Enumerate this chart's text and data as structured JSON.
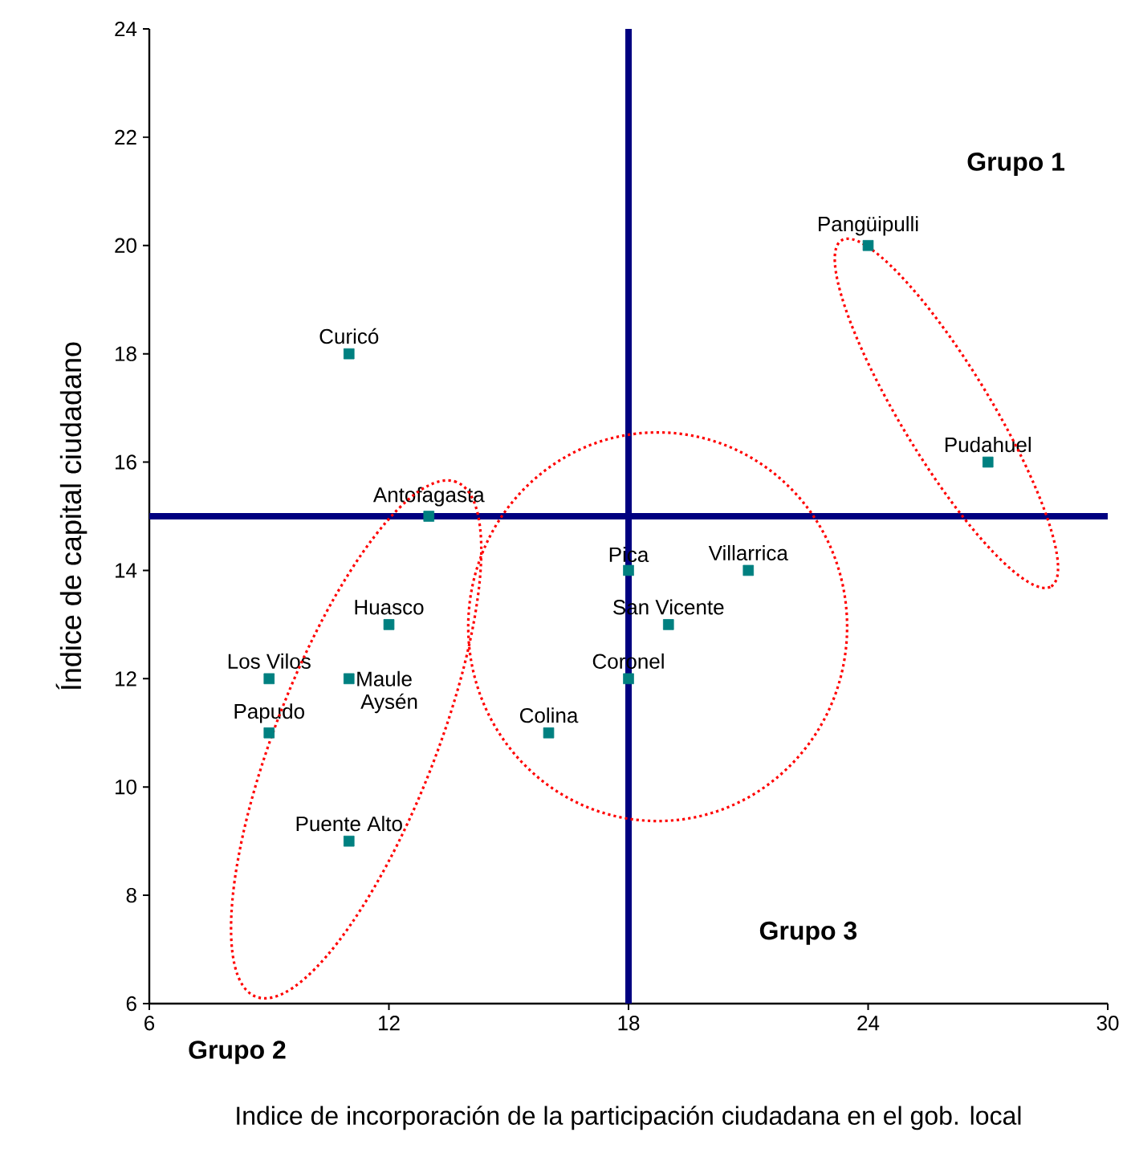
{
  "chart_data": {
    "type": "scatter",
    "xlabel": "Indice de incorporación de la participación ciudadana en el gob. local",
    "ylabel": "Índice de capital ciudadano",
    "xlim": [
      6,
      30
    ],
    "xticks": [
      6,
      12,
      18,
      24,
      30
    ],
    "ylim": [
      6,
      24
    ],
    "yticks": [
      6,
      8,
      10,
      12,
      14,
      16,
      18,
      20,
      22,
      24
    ],
    "marker": "square",
    "grid": false,
    "series": [
      {
        "color": "#008080",
        "x": [
          24,
          27,
          11,
          13,
          18,
          21,
          19,
          18,
          16,
          12,
          9,
          11,
          9,
          11
        ],
        "values": [
          20,
          16,
          18,
          15,
          14,
          14,
          13,
          12,
          11,
          13,
          12,
          12,
          11,
          9
        ]
      }
    ],
    "ref_lines": [
      {
        "axis": "x",
        "value": 18,
        "color": "#000080"
      },
      {
        "axis": "y",
        "value": 15,
        "color": "#000080"
      }
    ],
    "annotations": [
      {
        "text": "Pangüipulli",
        "x": 24,
        "y": 20
      },
      {
        "text": "Pudahuel",
        "x": 27,
        "y": 16
      },
      {
        "text": "Curicó",
        "x": 11,
        "y": 18
      },
      {
        "text": "Antofagasta",
        "x": 13,
        "y": 15
      },
      {
        "text": "Pica",
        "x": 18,
        "y": 14
      },
      {
        "text": "Villarrica",
        "x": 21,
        "y": 14
      },
      {
        "text": "San Vicente",
        "x": 19,
        "y": 13
      },
      {
        "text": "Coronel",
        "x": 18,
        "y": 12
      },
      {
        "text": "Colina",
        "x": 16,
        "y": 11
      },
      {
        "text": "Huasco",
        "x": 12,
        "y": 13
      },
      {
        "text": "Los Vilos",
        "x": 9,
        "y": 12
      },
      {
        "text": "Maule",
        "x": 11,
        "y": 12
      },
      {
        "text": "Aysén",
        "x": 11,
        "y": 12
      },
      {
        "text": "Papudo",
        "x": 9,
        "y": 11
      },
      {
        "text": "Puente Alto",
        "x": 11,
        "y": 9
      },
      "Grupo 1",
      "Grupo 2",
      "Grupo 3"
    ]
  }
}
